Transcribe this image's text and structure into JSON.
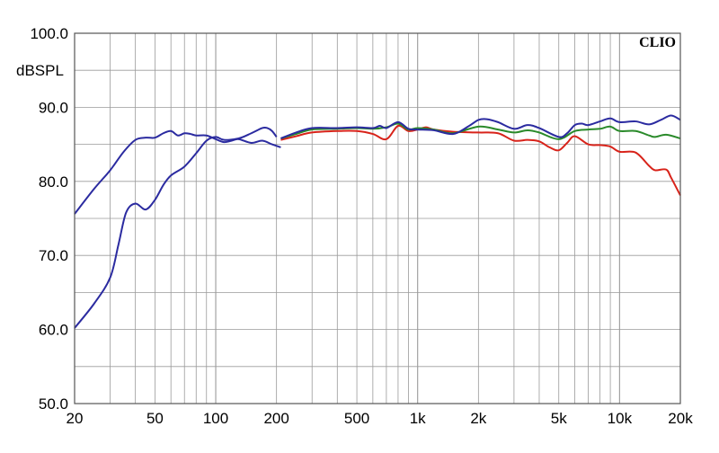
{
  "chart_data": {
    "type": "line",
    "title": "",
    "brand": "CLIO",
    "ylabel": "dBSPL",
    "xlabel": "",
    "x_scale": "log",
    "xlim": [
      20,
      20000
    ],
    "ylim": [
      50,
      100
    ],
    "grid": true,
    "y_ticks": [
      {
        "value": 100,
        "label": "100.0"
      },
      {
        "value": 90,
        "label": "90.0"
      },
      {
        "value": 80,
        "label": "80.0"
      },
      {
        "value": 70,
        "label": "70.0"
      },
      {
        "value": 60,
        "label": "60.0"
      },
      {
        "value": 50,
        "label": "50.0"
      }
    ],
    "x_ticks": [
      {
        "value": 20,
        "label": "20"
      },
      {
        "value": 50,
        "label": "50"
      },
      {
        "value": 100,
        "label": "100"
      },
      {
        "value": 200,
        "label": "200"
      },
      {
        "value": 500,
        "label": "500"
      },
      {
        "value": 1000,
        "label": "1k"
      },
      {
        "value": 2000,
        "label": "2k"
      },
      {
        "value": 5000,
        "label": "5k"
      },
      {
        "value": 10000,
        "label": "10k"
      },
      {
        "value": 20000,
        "label": "20k"
      }
    ],
    "series": [
      {
        "color": "#2b2ba0",
        "x": [
          20,
          25,
          30,
          35,
          40,
          45,
          50,
          55,
          60,
          65,
          70,
          75,
          80,
          90,
          100,
          110,
          120,
          130,
          150,
          170,
          190,
          210
        ],
        "values": [
          75.6,
          79.0,
          81.5,
          84.0,
          85.6,
          85.9,
          85.9,
          86.5,
          86.8,
          86.2,
          86.5,
          86.4,
          86.2,
          86.2,
          85.7,
          85.3,
          85.5,
          85.7,
          85.2,
          85.5,
          85.0,
          84.6
        ]
      },
      {
        "color": "#2b2ba0",
        "x": [
          20,
          25,
          30,
          33,
          36,
          40,
          45,
          50,
          55,
          60,
          70,
          80,
          90,
          100,
          110,
          130,
          150,
          170,
          180,
          190,
          200
        ],
        "values": [
          60.2,
          63.5,
          67.0,
          71.5,
          75.8,
          77.0,
          76.2,
          77.5,
          79.5,
          80.8,
          82.0,
          83.8,
          85.5,
          86.0,
          85.6,
          85.8,
          86.5,
          87.2,
          87.2,
          86.8,
          86.0
        ]
      },
      {
        "color": "#d8231a",
        "x": [
          210,
          250,
          300,
          400,
          500,
          600,
          700,
          800,
          900,
          1000,
          1100,
          1200,
          1500,
          2000,
          2500,
          3000,
          3500,
          4000,
          4500,
          5000,
          5500,
          6000,
          7000,
          8000,
          9000,
          10000,
          12000,
          14000,
          15000,
          17000,
          18000,
          20000
        ],
        "values": [
          85.6,
          86.1,
          86.6,
          86.8,
          86.8,
          86.4,
          85.7,
          87.5,
          86.8,
          87.0,
          87.3,
          87.0,
          86.7,
          86.6,
          86.5,
          85.5,
          85.6,
          85.4,
          84.6,
          84.2,
          85.2,
          86.1,
          85.0,
          84.9,
          84.7,
          84.0,
          83.9,
          82.1,
          81.5,
          81.6,
          80.5,
          78.1
        ]
      },
      {
        "color": "#2a8a2a",
        "x": [
          210,
          250,
          300,
          400,
          500,
          600,
          700,
          800,
          900,
          1000,
          1200,
          1500,
          2000,
          2500,
          3000,
          3500,
          4000,
          5000,
          6000,
          7000,
          8000,
          9000,
          10000,
          12000,
          14000,
          15000,
          17000,
          20000
        ],
        "values": [
          85.8,
          86.4,
          87.0,
          87.1,
          87.2,
          87.1,
          87.3,
          87.8,
          87.0,
          87.2,
          87.0,
          86.5,
          87.4,
          87.0,
          86.6,
          86.9,
          86.6,
          85.7,
          86.8,
          87.0,
          87.1,
          87.4,
          86.8,
          86.8,
          86.2,
          86.0,
          86.3,
          85.8
        ]
      },
      {
        "color": "#2b2ba0",
        "x": [
          210,
          250,
          300,
          400,
          500,
          600,
          650,
          700,
          800,
          900,
          1000,
          1200,
          1500,
          1800,
          2000,
          2200,
          2500,
          3000,
          3500,
          4000,
          5000,
          5500,
          6000,
          6500,
          7000,
          8000,
          9000,
          10000,
          12000,
          14000,
          16000,
          18000,
          20000
        ],
        "values": [
          85.8,
          86.6,
          87.2,
          87.2,
          87.3,
          87.2,
          87.5,
          87.2,
          88.0,
          87.1,
          87.0,
          86.9,
          86.4,
          87.5,
          88.3,
          88.4,
          88.0,
          87.1,
          87.6,
          87.2,
          86.0,
          86.5,
          87.6,
          87.8,
          87.6,
          88.1,
          88.5,
          88.0,
          88.1,
          87.7,
          88.3,
          88.9,
          88.3
        ]
      }
    ]
  }
}
